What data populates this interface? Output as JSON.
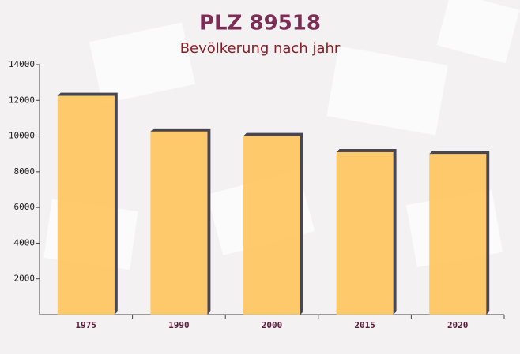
{
  "chart_data": {
    "type": "bar",
    "title": "PLZ 89518",
    "subtitle": "Bevölkerung nach jahr",
    "categories": [
      "1975",
      "1990",
      "2000",
      "2015",
      "2020"
    ],
    "values": [
      12250,
      10250,
      10000,
      9100,
      9000
    ],
    "color": "#ffc45c",
    "ylim": [
      0,
      14000
    ],
    "yticks": [
      2000,
      4000,
      6000,
      8000,
      10000,
      12000,
      14000
    ]
  }
}
